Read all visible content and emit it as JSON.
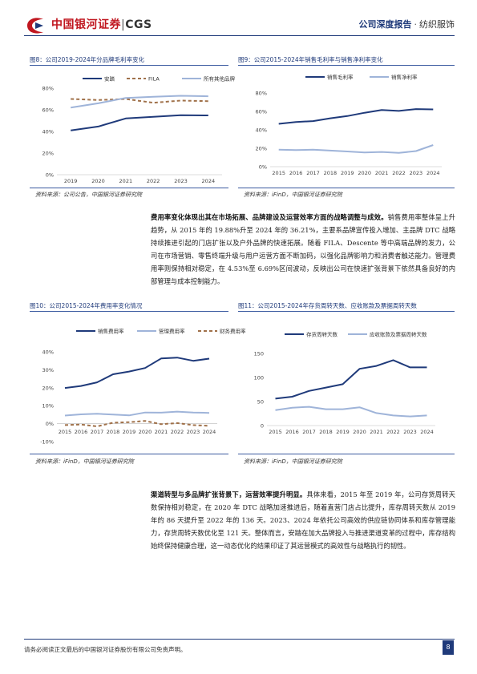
{
  "header": {
    "logo_cn": "中国银河证券",
    "logo_sep": "|",
    "logo_en": "CGS",
    "report_type": "公司深度报告",
    "dot": "·",
    "category": "纺织服饰",
    "colors": {
      "brand_red": "#c0161f",
      "brand_navy": "#1f3a7a"
    }
  },
  "fig8": {
    "title": "图8：公司2019-2024年分品牌毛利率变化",
    "source": "资料来源：公司公告，中国银河证券研究院",
    "chart_data": {
      "type": "line",
      "x": [
        "2019",
        "2020",
        "2021",
        "2022",
        "2023",
        "2024"
      ],
      "ylim": [
        0,
        80
      ],
      "yticks": [
        "0%",
        "20%",
        "40%",
        "60%",
        "80%"
      ],
      "series": [
        {
          "name": "安踏",
          "values": [
            41,
            44.5,
            52,
            53.5,
            55,
            54.8
          ],
          "color": "#1f3a7a",
          "dash": false
        },
        {
          "name": "FILA",
          "values": [
            70,
            69,
            70,
            66.5,
            68.5,
            68
          ],
          "color": "#a0714a",
          "dash": true
        },
        {
          "name": "所有其他品牌",
          "values": [
            62,
            66,
            71,
            72,
            73,
            72.5
          ],
          "color": "#9fb4d9",
          "dash": false
        }
      ]
    }
  },
  "fig9": {
    "title": "图9：公司2015-2024年销售毛利率与销售净利率变化",
    "source": "资料来源：iFinD，中国银河证券研究院",
    "chart_data": {
      "type": "line",
      "x": [
        "2015",
        "2016",
        "2017",
        "2018",
        "2019",
        "2020",
        "2021",
        "2022",
        "2023",
        "2024"
      ],
      "ylim": [
        0,
        80
      ],
      "yticks": [
        "0%",
        "20%",
        "40%",
        "60%",
        "80%"
      ],
      "series": [
        {
          "name": "销售毛利率",
          "values": [
            46.5,
            48.5,
            49.5,
            52.5,
            55,
            58.5,
            61.5,
            60.5,
            62.5,
            62.2
          ],
          "color": "#1f3a7a",
          "dash": false
        },
        {
          "name": "销售净利率",
          "values": [
            18.5,
            18,
            18.5,
            17.5,
            16.5,
            15.5,
            16,
            15,
            17,
            23.5
          ],
          "color": "#9fb4d9",
          "dash": false
        }
      ]
    }
  },
  "para1": {
    "lead": "费用率变化体现出其在市场拓展、品牌建设及运营效率方面的战略调整与成效。",
    "body": "销售费用率整体呈上升趋势，从 2015 年的 19.88%升至 2024 年的 36.21%，主要系品牌宣传投入增加、主品牌 DTC 战略持续推进引起的门店扩张以及户外品牌的快速拓展。随着 FILA、Descente 等中高端品牌的发力，公司在市场营销、零售终端升级与用户运营方面不断加码，以强化品牌影响力和消费者触达能力。管理费用率则保持相对稳定，在 4.53%至 6.69%区间波动，反映出公司在快速扩张背景下依然具备良好的内部管理与成本控制能力。"
  },
  "fig10": {
    "title": "图10：公司2015-2024年费用率变化情况",
    "source": "资料来源：iFinD，中国银河证券研究院",
    "chart_data": {
      "type": "line",
      "x": [
        "2015",
        "2016",
        "2017",
        "2018",
        "2019",
        "2020",
        "2021",
        "2022",
        "2023",
        "2024"
      ],
      "ylim": [
        -10,
        40
      ],
      "yticks": [
        "-10%",
        "0%",
        "10%",
        "20%",
        "30%",
        "40%"
      ],
      "series": [
        {
          "name": "销售费用率",
          "values": [
            19.88,
            21,
            23,
            27.5,
            29,
            31,
            36.3,
            36.8,
            35,
            36.21
          ],
          "color": "#1f3a7a",
          "dash": false
        },
        {
          "name": "管理费用率",
          "values": [
            4.53,
            5.2,
            5.5,
            5.1,
            4.6,
            6.2,
            6.1,
            6.69,
            6.2,
            6.0
          ],
          "color": "#9fb4d9",
          "dash": false
        },
        {
          "name": "财务费用率",
          "values": [
            -0.8,
            -0.5,
            -1.5,
            0.5,
            0.8,
            1.5,
            -0.3,
            0.3,
            -0.8,
            -1.2
          ],
          "color": "#a0714a",
          "dash": true
        }
      ]
    }
  },
  "fig11": {
    "title": "图11：公司2015-2024年存货周转天数、应收账款及票据周转天数",
    "source": "资料来源：iFinD，中国银河证券研究院",
    "chart_data": {
      "type": "line",
      "x": [
        "2015",
        "2016",
        "2017",
        "2018",
        "2019",
        "2020",
        "2021",
        "2022",
        "2023",
        "2024"
      ],
      "ylim": [
        0,
        150
      ],
      "yticks": [
        "0",
        "50",
        "100",
        "150"
      ],
      "series": [
        {
          "name": "存货周转天数",
          "values": [
            56,
            60,
            72,
            79,
            86,
            118,
            124,
            136,
            121,
            121
          ],
          "color": "#1f3a7a",
          "dash": false
        },
        {
          "name": "应收账款及票据周转天数",
          "values": [
            32,
            37,
            39,
            34,
            34,
            38,
            26,
            21,
            19,
            21
          ],
          "color": "#9fb4d9",
          "dash": false
        }
      ]
    }
  },
  "para2": {
    "lead": "渠道转型与多品牌扩张背景下，运营效率提升明显。",
    "body": "具体来看，2015 年至 2019 年，公司存货周转天数保持相对稳定，在 2020 年 DTC 战略加速推进后，随着直营门店占比提升，库存周转天数从 2019 年的 86 天提升至 2022 年的 136 天。2023、2024 年依托公司高效的供应链协同体系和库存管理能力，存货周转天数优化至 121 天。整体而言，安踏在加大品牌投入与推进渠道变革的过程中，库存结构始终保持健康合理，这一动态优化的结果印证了其运营模式的高效性与战略执行的韧性。"
  },
  "footer": {
    "disclaimer": "请务必阅读正文最后的中国银河证券股份有限公司免责声明。",
    "page": "8"
  }
}
